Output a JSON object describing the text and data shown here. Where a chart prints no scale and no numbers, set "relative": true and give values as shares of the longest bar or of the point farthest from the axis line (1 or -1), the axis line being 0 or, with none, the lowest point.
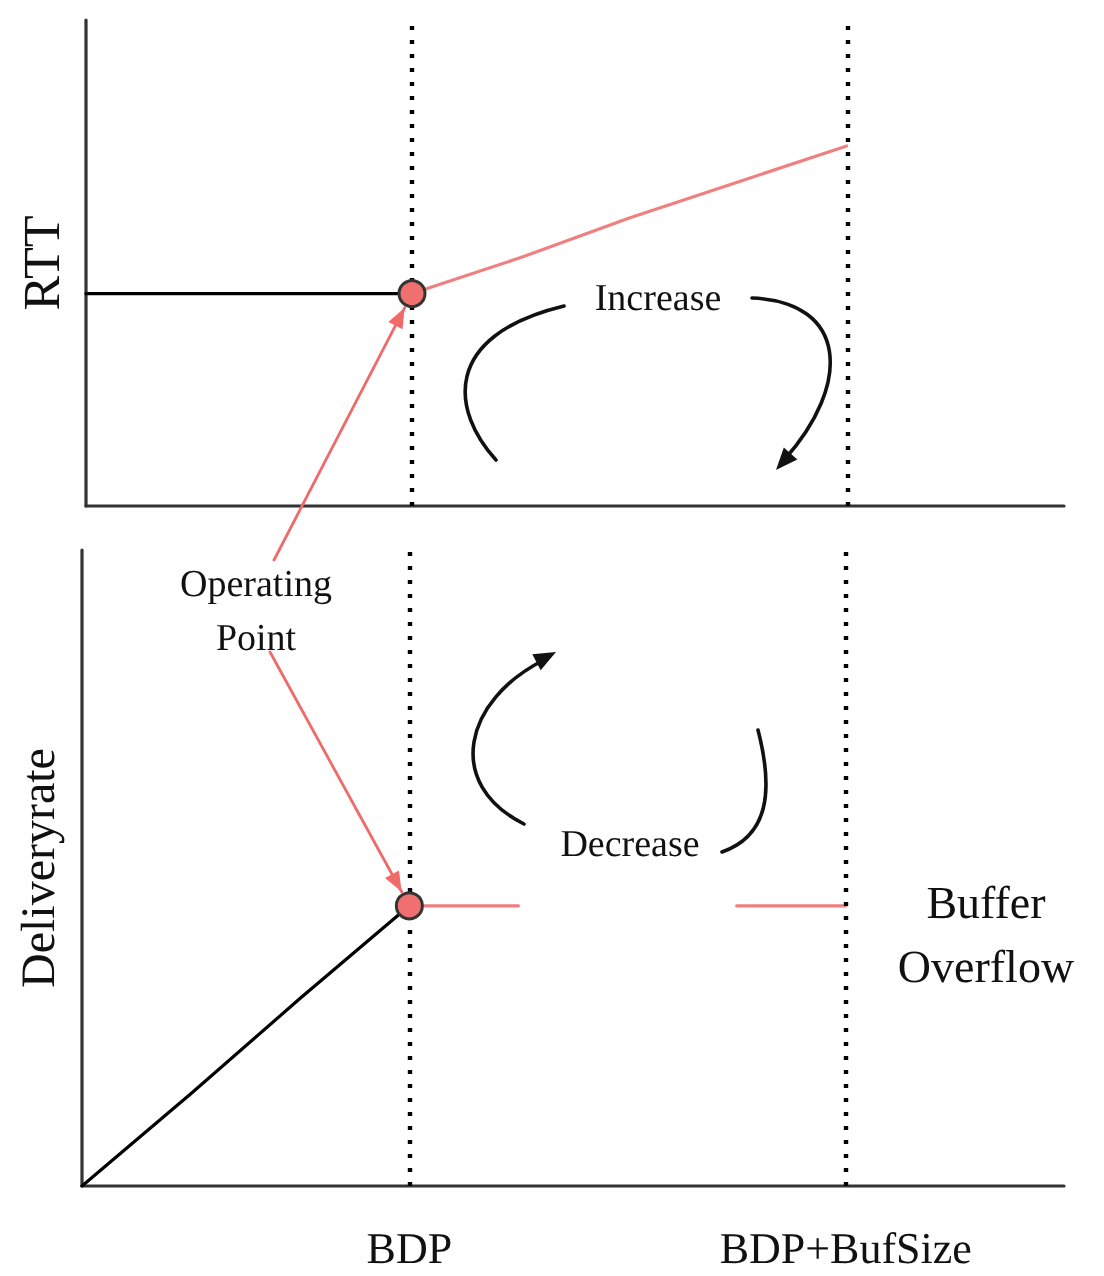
{
  "chart_data": [
    {
      "type": "line",
      "ylabel": "RTT",
      "relative": true,
      "categories": [
        null,
        null,
        null,
        "BDP",
        null,
        null,
        null,
        "BDP+BufSize",
        null,
        null
      ],
      "tick_labels": false,
      "series": [
        {
          "color": "#000000",
          "values": [
            0.59,
            0.59,
            0.59,
            0.59,
            null,
            null,
            null,
            null,
            null,
            null
          ]
        },
        {
          "color": "#f08080",
          "values": [
            null,
            null,
            null,
            0.59,
            0.69,
            0.8,
            0.9,
            1,
            null,
            null
          ]
        },
        {
          "type": "scatter",
          "marker": "circle",
          "color": "#f07070",
          "values": [
            null,
            null,
            null,
            0.59,
            null,
            null,
            null,
            null,
            null,
            null
          ]
        }
      ],
      "ref_lines": [
        {
          "axis": "x",
          "value": "BDP",
          "color": "#000000",
          "line_style": "dotted"
        },
        {
          "axis": "x",
          "value": "BDP+BufSize",
          "color": "#000000",
          "line_style": "dotted"
        }
      ],
      "annotations": [
        "Increase"
      ]
    },
    {
      "type": "line",
      "ylabel": "Deliveryrate",
      "relative": true,
      "categories": [
        null,
        null,
        null,
        "BDP",
        null,
        null,
        null,
        "BDP+BufSize",
        null,
        null
      ],
      "tick_labels": "x",
      "series": [
        {
          "color": "#000000",
          "values": [
            0,
            0.33,
            0.67,
            1,
            null,
            null,
            null,
            null,
            null,
            null
          ]
        },
        {
          "color": "#f08080",
          "values": [
            null,
            null,
            null,
            1,
            1,
            null,
            1,
            1,
            null,
            null
          ]
        },
        {
          "type": "scatter",
          "marker": "circle",
          "color": "#f07070",
          "values": [
            null,
            null,
            null,
            1,
            null,
            null,
            null,
            null,
            null,
            null
          ]
        }
      ],
      "ref_lines": [
        {
          "axis": "x",
          "value": "BDP",
          "color": "#000000",
          "line_style": "dotted"
        },
        {
          "axis": "x",
          "value": "BDP+BufSize",
          "color": "#000000",
          "line_style": "dotted"
        }
      ],
      "annotations": [
        "Operating Point",
        "Decrease",
        "Buffer Overflow"
      ]
    }
  ]
}
